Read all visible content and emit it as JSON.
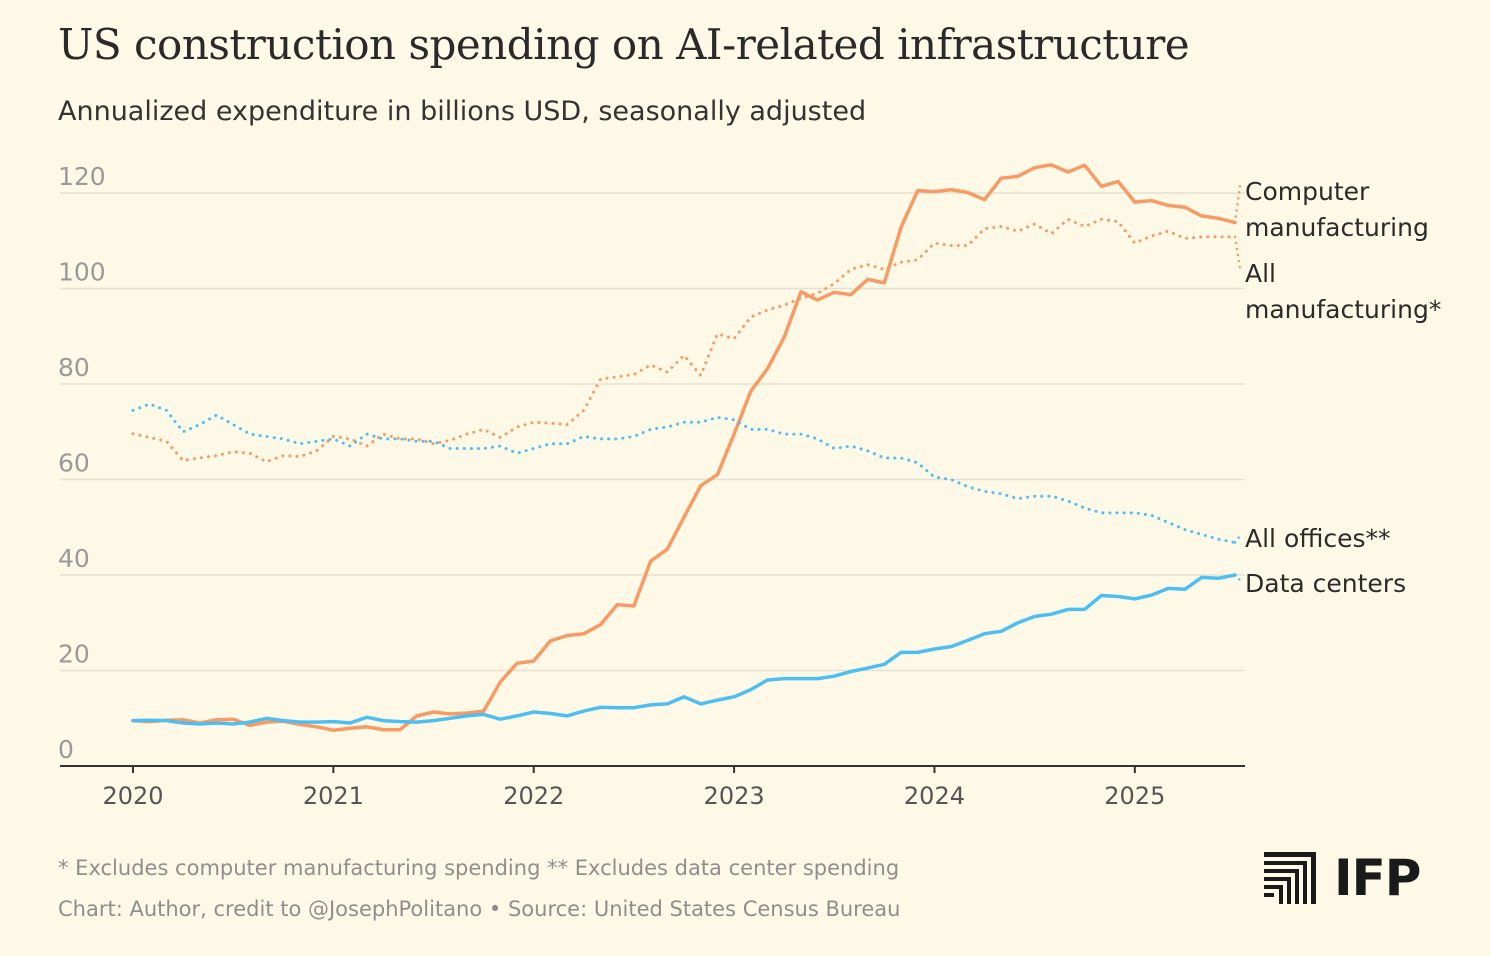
{
  "header": {
    "title": "US construction spending on AI-related infrastructure",
    "subtitle": "Annualized expenditure in billions USD, seasonally adjusted"
  },
  "footer": {
    "note": "* Excludes computer manufacturing spending ** Excludes data center spending",
    "credit": "Chart: Author, credit to @JosephPolitano • Source: United States Census Bureau"
  },
  "logo": {
    "text": "IFP"
  },
  "colors": {
    "orange": "#F79A64",
    "blue": "#4DBEF2",
    "grid": "#E4E1D4",
    "axis": "#333333",
    "tick_label": "#9a9a9a",
    "year_label": "#555555"
  },
  "chart_data": {
    "type": "line",
    "ylim": [
      0,
      120
    ],
    "yticks": [
      0,
      20,
      40,
      60,
      80,
      100,
      120
    ],
    "xlim": [
      2020.0,
      2025.5
    ],
    "xticks": [
      "2020",
      "2021",
      "2022",
      "2023",
      "2024",
      "2025"
    ],
    "grid": "horizontal",
    "legend": "direct labels at right",
    "series": [
      {
        "name": "Computer manufacturing",
        "color": "#F79A64",
        "style": "solid",
        "label_lines": [
          "Computer",
          "manufacturing"
        ],
        "x_start": 2020.0,
        "step": 0.08333,
        "values": [
          9.5,
          9.3,
          9.6,
          9.7,
          9.0,
          9.7,
          9.8,
          8.5,
          9.2,
          9.4,
          8.7,
          8.2,
          7.5,
          7.9,
          8.2,
          7.6,
          7.6,
          10.5,
          11.3,
          10.9,
          11.1,
          11.5,
          17.6,
          21.5,
          22.0,
          26.2,
          27.3,
          27.7,
          29.6,
          33.8,
          33.5,
          42.9,
          45.4,
          52.1,
          58.7,
          61.0,
          69.5,
          78.5,
          83.2,
          89.8,
          99.3,
          97.6,
          99.2,
          98.7,
          101.9,
          101.2,
          112.8,
          120.5,
          120.3,
          120.7,
          120.1,
          118.6,
          123.1,
          123.5,
          125.3,
          125.9,
          124.4,
          125.8,
          121.4,
          122.4,
          118.1,
          118.4,
          117.4,
          117.0,
          115.2,
          114.7,
          113.8
        ]
      },
      {
        "name": "All manufacturing*",
        "color": "#F79A64",
        "style": "dotted",
        "label_lines": [
          "All",
          "manufacturing*"
        ],
        "x_start": 2020.0,
        "step": 0.08333,
        "values": [
          69.6,
          68.8,
          68.0,
          64.0,
          64.5,
          65.0,
          65.8,
          65.5,
          63.7,
          65.0,
          64.8,
          66.0,
          69.0,
          68.5,
          67.0,
          69.5,
          68.5,
          68.5,
          67.5,
          68.2,
          69.5,
          70.5,
          68.8,
          71.0,
          72.0,
          71.8,
          71.5,
          74.5,
          81.0,
          81.5,
          82.0,
          84.0,
          82.5,
          86.0,
          81.8,
          90.5,
          89.5,
          94.0,
          95.5,
          96.5,
          98.0,
          99.0,
          101.0,
          104.0,
          105.0,
          104.0,
          105.5,
          106.0,
          109.5,
          109.0,
          109.0,
          112.5,
          113.0,
          112.0,
          113.5,
          111.5,
          114.5,
          113.0,
          114.5,
          114.0,
          109.5,
          111.0,
          112.0,
          110.5,
          110.8,
          110.8,
          110.8
        ]
      },
      {
        "name": "All offices**",
        "color": "#4DBEF2",
        "style": "dotted",
        "label_lines": [
          "All offices**"
        ],
        "x_start": 2020.0,
        "step": 0.08333,
        "values": [
          74.5,
          75.8,
          74.5,
          70.0,
          71.5,
          73.5,
          71.5,
          69.5,
          69.0,
          68.5,
          67.5,
          68.0,
          68.5,
          67.0,
          69.5,
          68.5,
          68.5,
          68.0,
          68.0,
          66.5,
          66.5,
          66.5,
          67.0,
          65.5,
          66.5,
          67.5,
          67.5,
          69.0,
          68.5,
          68.5,
          69.0,
          70.5,
          71.0,
          72.0,
          72.0,
          73.0,
          72.5,
          70.5,
          70.5,
          69.5,
          69.5,
          68.5,
          66.5,
          67.0,
          66.0,
          64.5,
          64.5,
          63.5,
          60.5,
          60.0,
          58.5,
          57.5,
          57.0,
          56.0,
          56.5,
          56.5,
          55.5,
          54.0,
          53.0,
          53.0,
          53.0,
          52.5,
          51.0,
          49.5,
          48.5,
          47.5,
          46.8
        ]
      },
      {
        "name": "Data centers",
        "color": "#4DBEF2",
        "style": "solid",
        "label_lines": [
          "Data centers"
        ],
        "x_start": 2020.0,
        "step": 0.08333,
        "values": [
          9.5,
          9.6,
          9.5,
          9.0,
          8.8,
          9.0,
          8.8,
          9.2,
          10.0,
          9.5,
          9.2,
          9.2,
          9.3,
          9.0,
          10.2,
          9.5,
          9.3,
          9.2,
          9.5,
          10.0,
          10.5,
          10.8,
          9.8,
          10.5,
          11.3,
          11.0,
          10.5,
          11.5,
          12.3,
          12.2,
          12.2,
          12.8,
          13.0,
          14.5,
          13.0,
          13.8,
          14.5,
          16.0,
          18.0,
          18.3,
          18.3,
          18.3,
          18.8,
          19.8,
          20.5,
          21.3,
          23.8,
          23.8,
          24.5,
          25.0,
          26.3,
          27.7,
          28.2,
          30.0,
          31.3,
          31.8,
          32.8,
          32.8,
          35.7,
          35.5,
          35.0,
          35.8,
          37.2,
          37.0,
          39.5,
          39.3,
          40.0
        ]
      }
    ]
  }
}
